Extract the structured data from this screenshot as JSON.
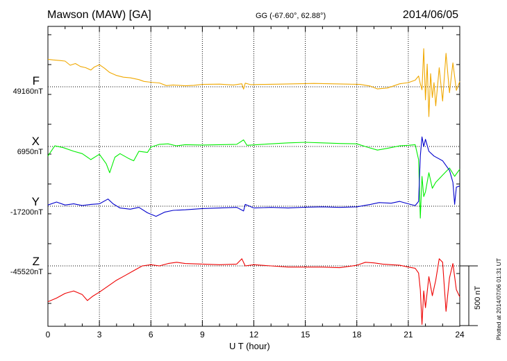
{
  "header": {
    "station": "Mawson (MAW)  [GA]",
    "coords": "GG (-67.60°,  62.88°)",
    "date": "2014/06/05"
  },
  "plotted_note": "Plotted at 2014/07/06 01:31  UT",
  "scale_label": "500 nT",
  "chart_data": {
    "type": "line",
    "xlabel": "U T (hour)",
    "xlim": [
      0,
      24
    ],
    "xticks": [
      "0",
      "3",
      "6",
      "9",
      "12",
      "15",
      "18",
      "21",
      "24"
    ],
    "grid": "dotted vertical at every 3 hours; dotted baseline per component",
    "scale_bar_nT": 500,
    "series": [
      {
        "name": "F",
        "baseline_label": "49160nT",
        "baseline_nT": 49160,
        "color": "#f0a800",
        "points": [
          [
            0,
            230
          ],
          [
            0.3,
            225
          ],
          [
            0.7,
            220
          ],
          [
            1.0,
            215
          ],
          [
            1.3,
            180
          ],
          [
            1.6,
            195
          ],
          [
            1.9,
            170
          ],
          [
            2.2,
            160
          ],
          [
            2.5,
            140
          ],
          [
            2.7,
            165
          ],
          [
            3.0,
            185
          ],
          [
            3.3,
            155
          ],
          [
            3.6,
            120
          ],
          [
            4.0,
            95
          ],
          [
            4.4,
            80
          ],
          [
            4.8,
            75
          ],
          [
            5.3,
            60
          ],
          [
            5.6,
            45
          ],
          [
            6.0,
            38
          ],
          [
            6.5,
            32
          ],
          [
            6.9,
            10
          ],
          [
            7.3,
            15
          ],
          [
            8.0,
            8
          ],
          [
            8.5,
            12
          ],
          [
            9.0,
            20
          ],
          [
            10.0,
            22
          ],
          [
            10.8,
            15
          ],
          [
            11.3,
            25
          ],
          [
            11.4,
            -20
          ],
          [
            11.5,
            30
          ],
          [
            11.8,
            18
          ],
          [
            12.5,
            20
          ],
          [
            13.5,
            22
          ],
          [
            14.5,
            25
          ],
          [
            15.5,
            28
          ],
          [
            16.5,
            25
          ],
          [
            17.5,
            22
          ],
          [
            18.2,
            20
          ],
          [
            18.8,
            5
          ],
          [
            19.2,
            -18
          ],
          [
            19.8,
            -10
          ],
          [
            20.5,
            25
          ],
          [
            21.0,
            35
          ],
          [
            21.4,
            55
          ],
          [
            21.6,
            90
          ],
          [
            21.7,
            25
          ],
          [
            21.8,
            -25
          ],
          [
            21.9,
            320
          ],
          [
            22.0,
            -110
          ],
          [
            22.1,
            190
          ],
          [
            22.2,
            -250
          ],
          [
            22.3,
            110
          ],
          [
            22.4,
            -90
          ],
          [
            22.5,
            35
          ],
          [
            22.6,
            -160
          ],
          [
            22.8,
            160
          ],
          [
            23.0,
            -120
          ],
          [
            23.2,
            280
          ],
          [
            23.4,
            -50
          ],
          [
            23.6,
            200
          ],
          [
            23.8,
            -30
          ],
          [
            24.0,
            45
          ]
        ]
      },
      {
        "name": "X",
        "baseline_label": "6950nT",
        "baseline_nT": 6950,
        "color": "#00ee00",
        "points": [
          [
            0,
            -80
          ],
          [
            0.4,
            5
          ],
          [
            0.9,
            -10
          ],
          [
            1.5,
            -40
          ],
          [
            2.0,
            -60
          ],
          [
            2.5,
            -110
          ],
          [
            3.0,
            -65
          ],
          [
            3.4,
            -145
          ],
          [
            3.6,
            -220
          ],
          [
            3.9,
            -90
          ],
          [
            4.2,
            -60
          ],
          [
            4.7,
            -100
          ],
          [
            5.0,
            -120
          ],
          [
            5.3,
            -40
          ],
          [
            5.8,
            -50
          ],
          [
            6.0,
            -5
          ],
          [
            6.5,
            18
          ],
          [
            7.0,
            22
          ],
          [
            7.5,
            5
          ],
          [
            8.0,
            15
          ],
          [
            9.0,
            12
          ],
          [
            10.0,
            15
          ],
          [
            11.0,
            18
          ],
          [
            11.4,
            55
          ],
          [
            11.6,
            10
          ],
          [
            12.5,
            18
          ],
          [
            14.0,
            30
          ],
          [
            15.0,
            35
          ],
          [
            16.0,
            30
          ],
          [
            17.0,
            25
          ],
          [
            18.0,
            22
          ],
          [
            18.6,
            -5
          ],
          [
            19.2,
            -30
          ],
          [
            19.8,
            -15
          ],
          [
            20.5,
            5
          ],
          [
            21.0,
            10
          ],
          [
            21.4,
            15
          ],
          [
            21.6,
            -110
          ],
          [
            21.7,
            -600
          ],
          [
            21.8,
            -250
          ],
          [
            21.9,
            -420
          ],
          [
            22.0,
            -380
          ],
          [
            22.2,
            -220
          ],
          [
            22.4,
            -350
          ],
          [
            22.6,
            -300
          ],
          [
            23.0,
            -240
          ],
          [
            23.4,
            -180
          ],
          [
            23.7,
            -250
          ],
          [
            24.0,
            -190
          ]
        ]
      },
      {
        "name": "Y",
        "baseline_label": "-17200nT",
        "baseline_nT": -17200,
        "color": "#0000cc",
        "points": [
          [
            0,
            10
          ],
          [
            0.5,
            35
          ],
          [
            1.0,
            10
          ],
          [
            1.5,
            20
          ],
          [
            2.0,
            5
          ],
          [
            2.5,
            15
          ],
          [
            3.0,
            20
          ],
          [
            3.5,
            60
          ],
          [
            3.8,
            20
          ],
          [
            4.2,
            -15
          ],
          [
            4.8,
            -25
          ],
          [
            5.3,
            -10
          ],
          [
            5.8,
            -55
          ],
          [
            6.3,
            -85
          ],
          [
            6.8,
            -50
          ],
          [
            7.3,
            -35
          ],
          [
            8.0,
            -30
          ],
          [
            9.0,
            -20
          ],
          [
            10.0,
            -15
          ],
          [
            11.0,
            -10
          ],
          [
            11.4,
            -40
          ],
          [
            11.5,
            15
          ],
          [
            12.0,
            -15
          ],
          [
            13.0,
            -10
          ],
          [
            14.0,
            -15
          ],
          [
            15.0,
            -8
          ],
          [
            16.0,
            -5
          ],
          [
            17.0,
            -10
          ],
          [
            18.0,
            -5
          ],
          [
            18.8,
            15
          ],
          [
            19.3,
            30
          ],
          [
            20.0,
            25
          ],
          [
            20.5,
            40
          ],
          [
            21.0,
            20
          ],
          [
            21.4,
            5
          ],
          [
            21.6,
            40
          ],
          [
            21.7,
            420
          ],
          [
            21.8,
            580
          ],
          [
            21.9,
            500
          ],
          [
            22.0,
            560
          ],
          [
            22.2,
            460
          ],
          [
            22.5,
            420
          ],
          [
            23.0,
            380
          ],
          [
            23.4,
            300
          ],
          [
            23.6,
            200
          ],
          [
            23.7,
            15
          ],
          [
            23.8,
            160
          ],
          [
            24.0,
            170
          ]
        ]
      },
      {
        "name": "Z",
        "baseline_label": "-45520nT",
        "baseline_nT": -45520,
        "color": "#ee0000",
        "points": [
          [
            0,
            -300
          ],
          [
            0.5,
            -270
          ],
          [
            1.0,
            -230
          ],
          [
            1.5,
            -210
          ],
          [
            2.0,
            -240
          ],
          [
            2.3,
            -290
          ],
          [
            2.6,
            -255
          ],
          [
            3.0,
            -220
          ],
          [
            3.5,
            -170
          ],
          [
            4.0,
            -120
          ],
          [
            4.5,
            -80
          ],
          [
            5.0,
            -40
          ],
          [
            5.5,
            0
          ],
          [
            6.0,
            10
          ],
          [
            6.5,
            0
          ],
          [
            7.0,
            20
          ],
          [
            7.5,
            30
          ],
          [
            8.0,
            20
          ],
          [
            9.0,
            15
          ],
          [
            10.0,
            10
          ],
          [
            11.0,
            15
          ],
          [
            11.3,
            60
          ],
          [
            11.5,
            0
          ],
          [
            12.0,
            10
          ],
          [
            13.0,
            0
          ],
          [
            14.0,
            -10
          ],
          [
            15.0,
            -10
          ],
          [
            16.0,
            -10
          ],
          [
            17.0,
            -15
          ],
          [
            18.0,
            5
          ],
          [
            18.5,
            30
          ],
          [
            19.0,
            25
          ],
          [
            19.5,
            15
          ],
          [
            20.0,
            10
          ],
          [
            20.5,
            5
          ],
          [
            21.0,
            -10
          ],
          [
            21.4,
            -20
          ],
          [
            21.6,
            -60
          ],
          [
            21.7,
            -200
          ],
          [
            21.8,
            -490
          ],
          [
            21.9,
            -210
          ],
          [
            22.0,
            -350
          ],
          [
            22.2,
            -90
          ],
          [
            22.4,
            -250
          ],
          [
            22.6,
            -120
          ],
          [
            22.8,
            60
          ],
          [
            23.0,
            30
          ],
          [
            23.2,
            -380
          ],
          [
            23.4,
            -100
          ],
          [
            23.6,
            20
          ],
          [
            23.8,
            -200
          ],
          [
            24.0,
            -260
          ]
        ]
      }
    ]
  }
}
